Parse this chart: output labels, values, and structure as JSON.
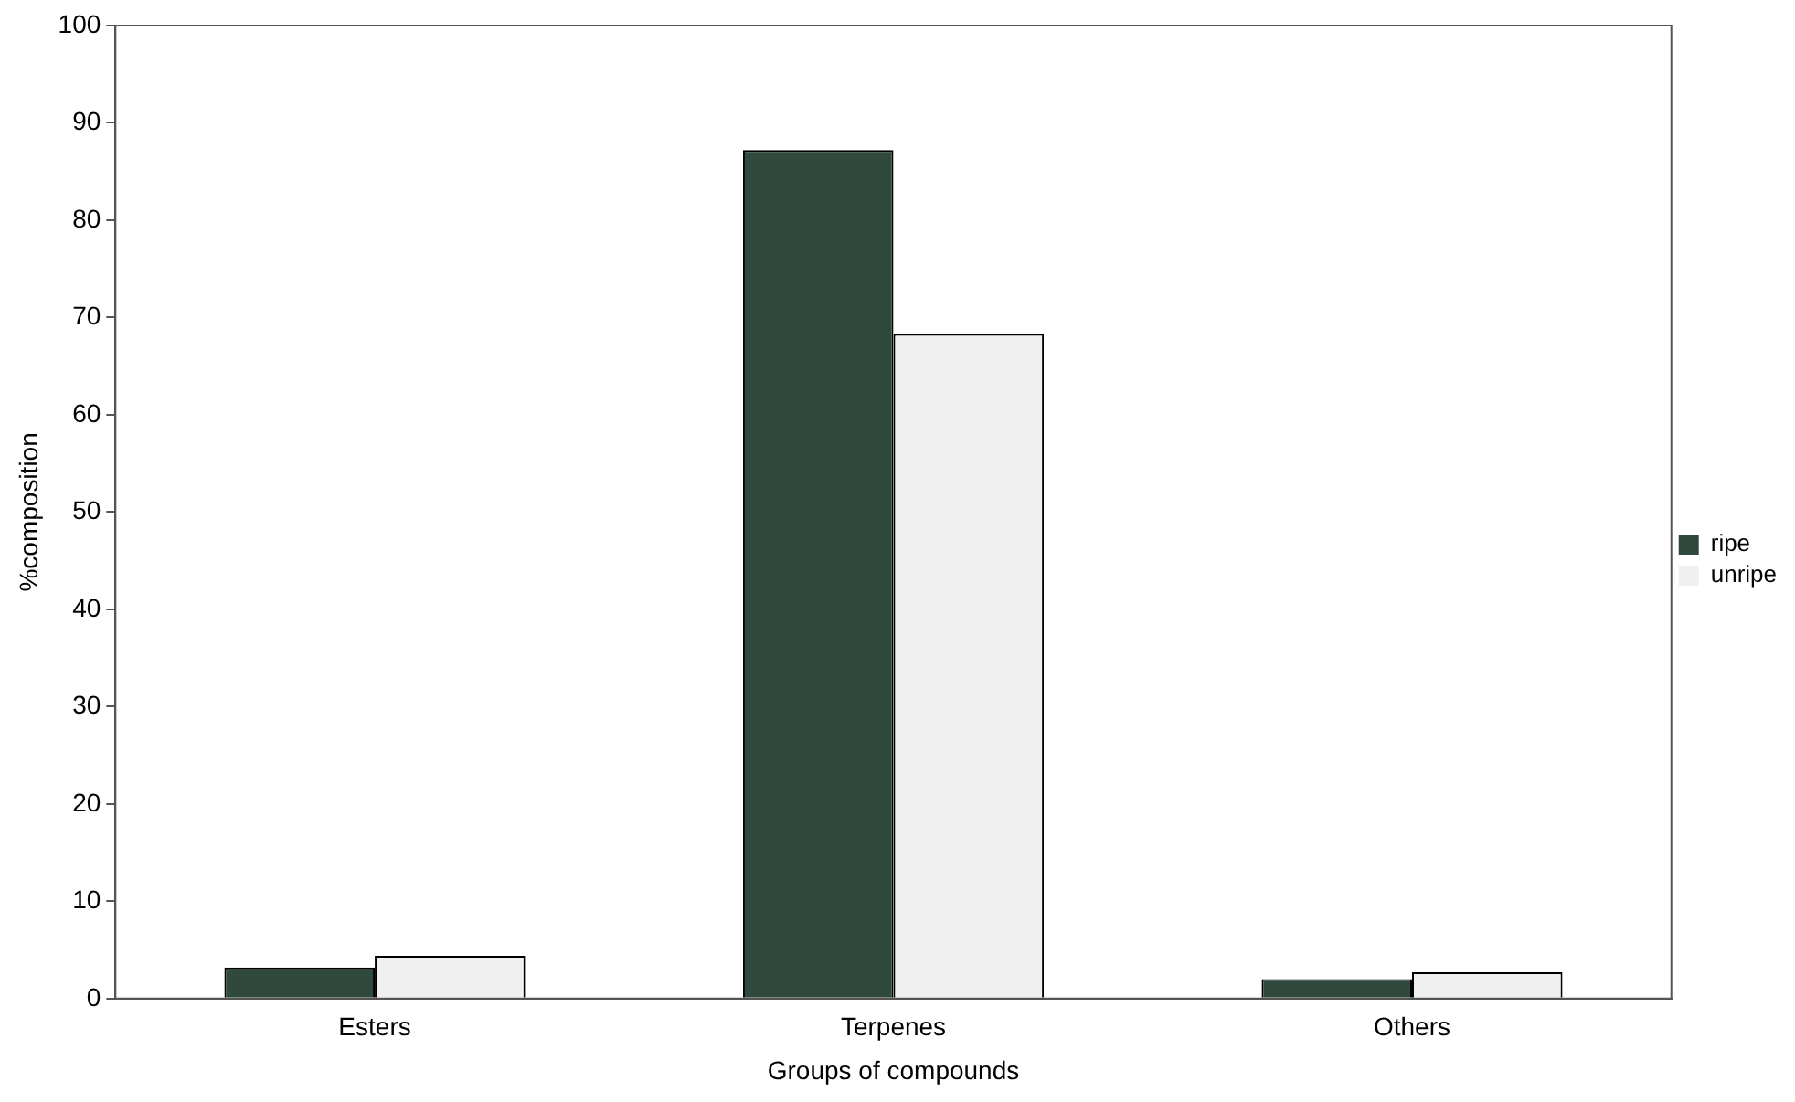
{
  "chart_data": {
    "type": "bar",
    "xlabel": "Groups of compounds",
    "ylabel": "%composition",
    "categories": [
      "Esters",
      "Terpenes",
      "Others"
    ],
    "series": [
      {
        "name": "ripe",
        "color": "#2f4a3c",
        "values": [
          3.2,
          87.2,
          2.0
        ]
      },
      {
        "name": "unripe",
        "color": "#f0f0f0",
        "values": [
          4.4,
          68.3,
          2.7
        ]
      }
    ],
    "ylim": [
      0,
      100
    ],
    "yticks": [
      0,
      10,
      20,
      30,
      40,
      50,
      60,
      70,
      80,
      90,
      100
    ],
    "grid": false,
    "legend": "right"
  }
}
